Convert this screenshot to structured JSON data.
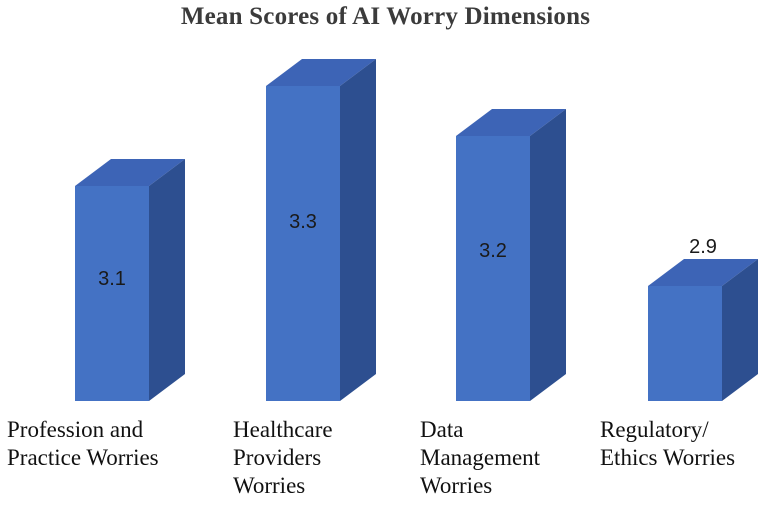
{
  "chart_data": {
    "type": "bar",
    "style": "3d-column",
    "title": "Mean Scores of AI Worry Dimensions",
    "categories": [
      "Profession and\nPractice Worries",
      "Healthcare\nProviders\nWorries",
      "Data\nManagement\nWorries",
      "Regulatory/\nEthics Worries"
    ],
    "values": [
      3.1,
      3.3,
      3.2,
      2.9
    ],
    "value_labels": [
      "3.1",
      "3.3",
      "3.2",
      "2.9"
    ],
    "xlabel": "",
    "ylabel": "",
    "ylim": [
      2.67,
      3.4
    ],
    "grid": false,
    "legend": false,
    "colors": {
      "bar_front": "#4472C4",
      "bar_top": "#3D64B6",
      "bar_side": "#2D4F90",
      "background": "#FFFFFF",
      "title": "#3B3B3B",
      "category_label": "#111111",
      "value_label": "#1A1A1A"
    }
  }
}
